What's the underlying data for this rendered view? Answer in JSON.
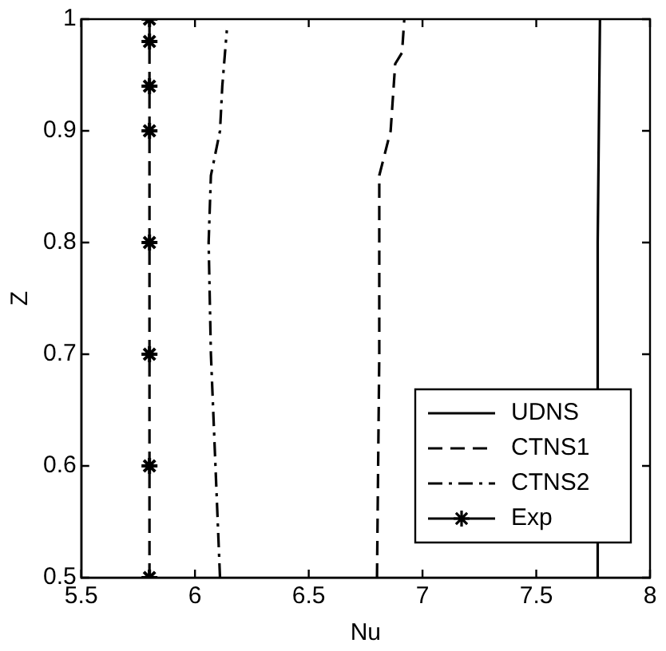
{
  "chart_data": {
    "type": "line",
    "xlabel": "Nu",
    "ylabel": "Z",
    "xlim": [
      5.5,
      8
    ],
    "xticks": [
      5.5,
      6,
      6.5,
      7,
      7.5,
      8
    ],
    "ylim": [
      0.5,
      1
    ],
    "yticks": [
      0.5,
      0.6,
      0.7,
      0.8,
      0.9,
      1
    ],
    "grid": false,
    "legend": "bottom right",
    "series": [
      {
        "name": "UDNS",
        "color": "#000000",
        "line_style": "solid",
        "marker": "none",
        "x": [
          7.77,
          7.77,
          7.78
        ],
        "values": [
          0.5,
          0.8,
          1
        ]
      },
      {
        "name": "CTNS1",
        "color": "#000000",
        "line_style": "dashed",
        "marker": "none",
        "x": [
          6.8,
          6.81,
          6.81,
          6.86,
          6.88,
          6.91,
          6.92
        ],
        "values": [
          0.5,
          0.7,
          0.86,
          0.9,
          0.96,
          0.97,
          1
        ]
      },
      {
        "name": "CTNS2",
        "color": "#000000",
        "line_style": "dashdot",
        "marker": "none",
        "x": [
          6.11,
          6.07,
          6.06,
          6.07,
          6.11,
          6.12,
          6.14
        ],
        "values": [
          0.5,
          0.7,
          0.8,
          0.86,
          0.9,
          0.94,
          0.99
        ]
      },
      {
        "name": "Exp",
        "color": "#000000",
        "line_style": "dashed",
        "marker": "cross",
        "x": [
          5.8,
          5.8,
          5.8,
          5.8,
          5.8,
          5.8,
          5.8,
          5.8
        ],
        "values": [
          0.5,
          0.6,
          0.7,
          0.8,
          0.9,
          0.94,
          0.98,
          1
        ]
      }
    ]
  }
}
